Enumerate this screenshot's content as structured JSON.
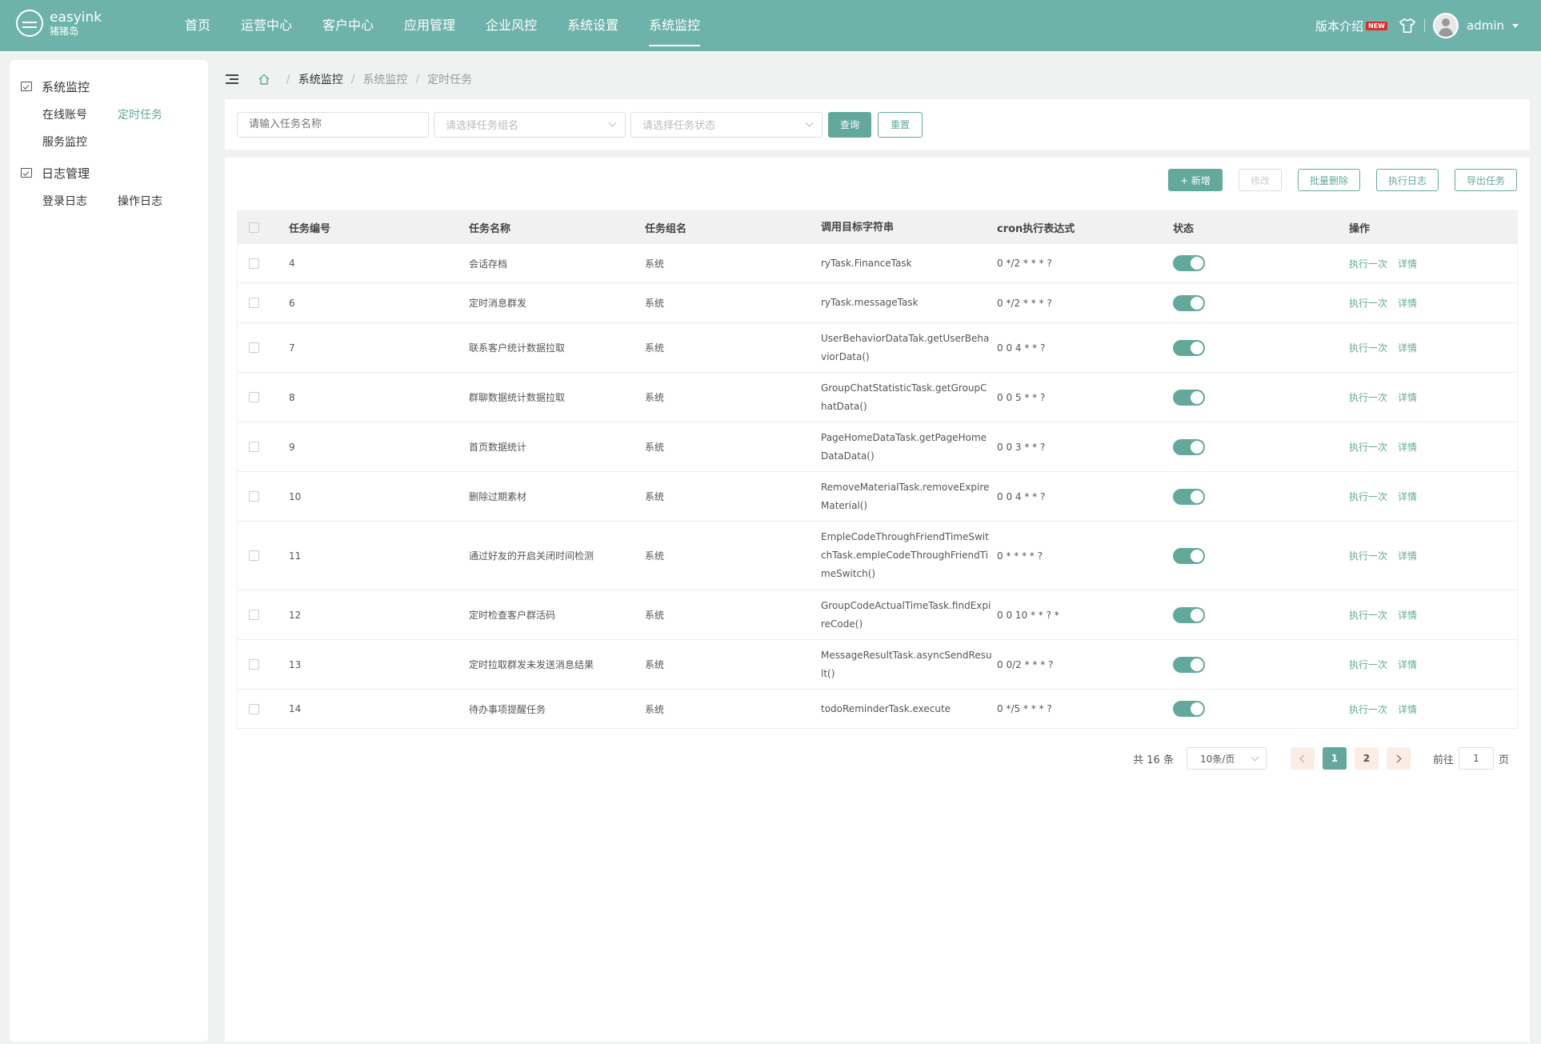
{
  "header": {
    "logo_name": "easyink",
    "logo_sub": "猪猪岛",
    "nav": [
      "首页",
      "运营中心",
      "客户中心",
      "应用管理",
      "企业风控",
      "系统设置",
      "系统监控"
    ],
    "version_label": "版本介绍",
    "new_badge": "NEW",
    "user": "admin"
  },
  "sidebar": {
    "groups": [
      {
        "label": "系统监控",
        "items": [
          "在线账号",
          "定时任务",
          "服务监控"
        ]
      },
      {
        "label": "日志管理",
        "items": [
          "登录日志",
          "操作日志"
        ]
      }
    ]
  },
  "breadcrumb": [
    "系统监控",
    "系统监控",
    "定时任务"
  ],
  "search": {
    "name_placeholder": "请输入任务名称",
    "group_placeholder": "请选择任务组名",
    "status_placeholder": "请选择任务状态",
    "query_label": "查询",
    "reset_label": "重置"
  },
  "toolbar": {
    "add_label": "+ 新增",
    "edit_label": "修改",
    "batch_delete_label": "批量删除",
    "log_label": "执行日志",
    "export_label": "导出任务"
  },
  "table": {
    "headers": [
      "任务编号",
      "任务名称",
      "任务组名",
      "调用目标字符串",
      "cron执行表达式",
      "状态",
      "操作"
    ],
    "ops": [
      "执行一次",
      "详情"
    ],
    "rows": [
      {
        "id": "4",
        "name": "会话存档",
        "group": "系统",
        "target": "ryTask.FinanceTask",
        "cron": "0 */2 * * * ?"
      },
      {
        "id": "6",
        "name": "定时消息群发",
        "group": "系统",
        "target": "ryTask.messageTask",
        "cron": "0 */2 * * * ?"
      },
      {
        "id": "7",
        "name": "联系客户统计数据拉取",
        "group": "系统",
        "target": "UserBehaviorDataTak.getUserBehaviorData()",
        "cron": "0 0 4 * * ?"
      },
      {
        "id": "8",
        "name": "群聊数据统计数据拉取",
        "group": "系统",
        "target": "GroupChatStatisticTask.getGroupChatData()",
        "cron": "0 0 5 * * ?"
      },
      {
        "id": "9",
        "name": "首页数据统计",
        "group": "系统",
        "target": "PageHomeDataTask.getPageHomeDataData()",
        "cron": "0 0 3 * * ?"
      },
      {
        "id": "10",
        "name": "删除过期素材",
        "group": "系统",
        "target": "RemoveMaterialTask.removeExpireMaterial()",
        "cron": "0 0 4 * * ?"
      },
      {
        "id": "11",
        "name": "通过好友的开启关闭时间检测",
        "group": "系统",
        "target": "EmpleCodeThroughFriendTimeSwitchTask.empleCodeThroughFriendTimeSwitch()",
        "cron": "0 * * * * ?"
      },
      {
        "id": "12",
        "name": "定时检查客户群活码",
        "group": "系统",
        "target": "GroupCodeActualTimeTask.findExpireCode()",
        "cron": "0 0 10 * * ? *"
      },
      {
        "id": "13",
        "name": "定时拉取群发未发送消息结果",
        "group": "系统",
        "target": "MessageResultTask.asyncSendResult()",
        "cron": "0 0/2 * * * ?"
      },
      {
        "id": "14",
        "name": "待办事项提醒任务",
        "group": "系统",
        "target": "todoReminderTask.execute",
        "cron": "0 */5 * * * ?"
      }
    ]
  },
  "pagination": {
    "total_label": "共 16 条",
    "page_size": "10条/页",
    "pages": [
      "1",
      "2"
    ],
    "current": "1",
    "goto_prefix": "前往",
    "goto_value": "1",
    "goto_suffix": "页"
  },
  "colors": {
    "brand": "#6db3a9",
    "accent": "#62a99c",
    "new_badge": "#e02a2a"
  }
}
